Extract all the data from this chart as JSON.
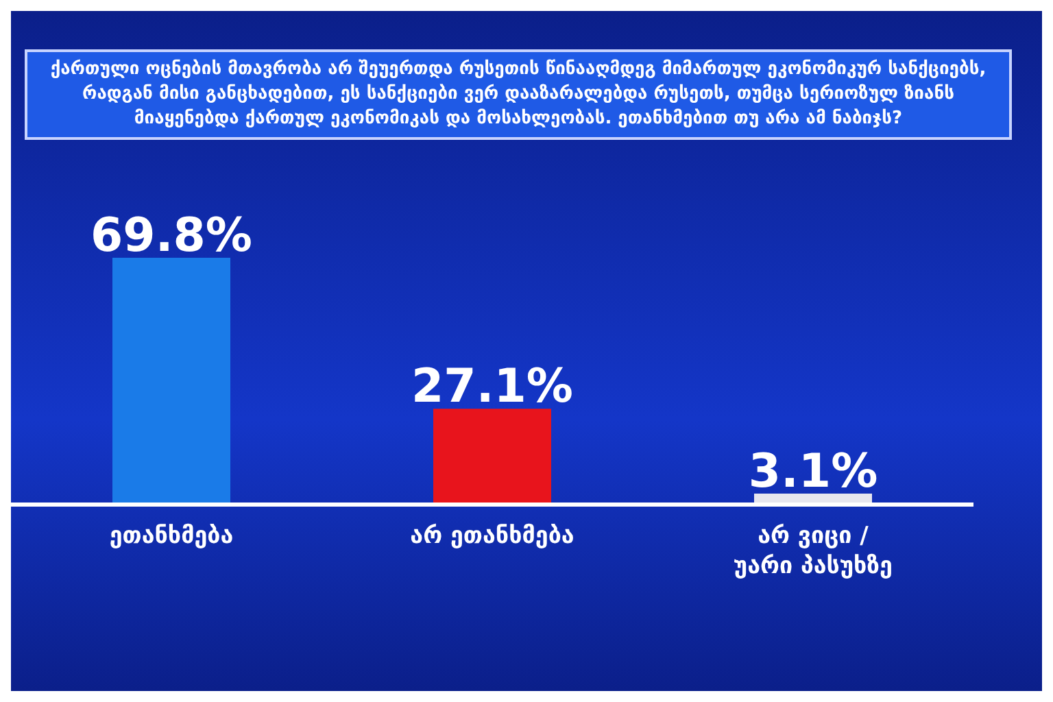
{
  "chart_data": {
    "type": "bar",
    "title": "ქართული ოცნების მთავრობა არ შეუერთდა რუსეთის წინააღმდეგ მიმართულ ეკონომიკურ სანქციებს, რადგან მისი განცხადებით, ეს სანქციები ვერ დააზარალებდა რუსეთს, თუმცა სერიოზულ ზიანს მიაყენებდა ქართულ ეკონომიკას და მოსახლეობას. ეთანხმებით თუ არა ამ ნაბიჯს?",
    "categories": [
      "ეთანხმება",
      "არ ეთანხმება",
      "არ ვიცი / უარი პასუხზე"
    ],
    "values": [
      69.8,
      27.1,
      3.1
    ],
    "colors": [
      "#1a7be8",
      "#e8141c",
      "#e6e6ee"
    ],
    "value_labels": [
      "69.8%",
      "27.1%",
      "3.1%"
    ]
  }
}
